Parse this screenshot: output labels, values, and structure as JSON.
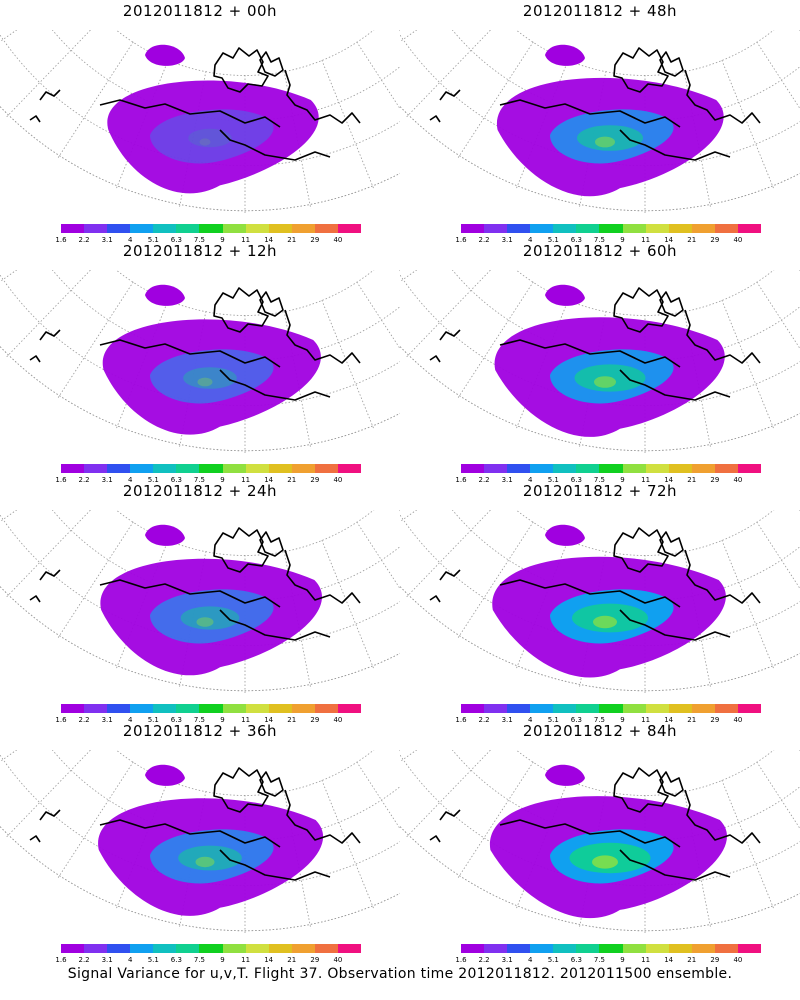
{
  "panels": [
    {
      "title": "2012011812 + 00h",
      "level": 0.15
    },
    {
      "title": "2012011812 + 12h",
      "level": 0.35
    },
    {
      "title": "2012011812 + 24h",
      "level": 0.45
    },
    {
      "title": "2012011812 + 36h",
      "level": 0.55
    },
    {
      "title": "2012011812 + 48h",
      "level": 0.6
    },
    {
      "title": "2012011812 + 60h",
      "level": 0.7
    },
    {
      "title": "2012011812 + 72h",
      "level": 0.8
    },
    {
      "title": "2012011812 + 84h",
      "level": 0.9
    }
  ],
  "colorbar": {
    "labels": [
      "1.6",
      "2.2",
      "3.1",
      "4",
      "5.1",
      "6.3",
      "7.5",
      "9",
      "11",
      "14",
      "21",
      "29",
      "40"
    ],
    "colors": [
      "#a000e0",
      "#8030f0",
      "#3050f0",
      "#10a0f0",
      "#10c0c0",
      "#10d090",
      "#10d020",
      "#90e040",
      "#d0e040",
      "#e0c020",
      "#f0a030",
      "#f07040",
      "#f01080"
    ]
  },
  "footer": "Signal Variance for u,v,T. Flight 37. Observation time 2012011812. 2012011500 ensemble."
}
